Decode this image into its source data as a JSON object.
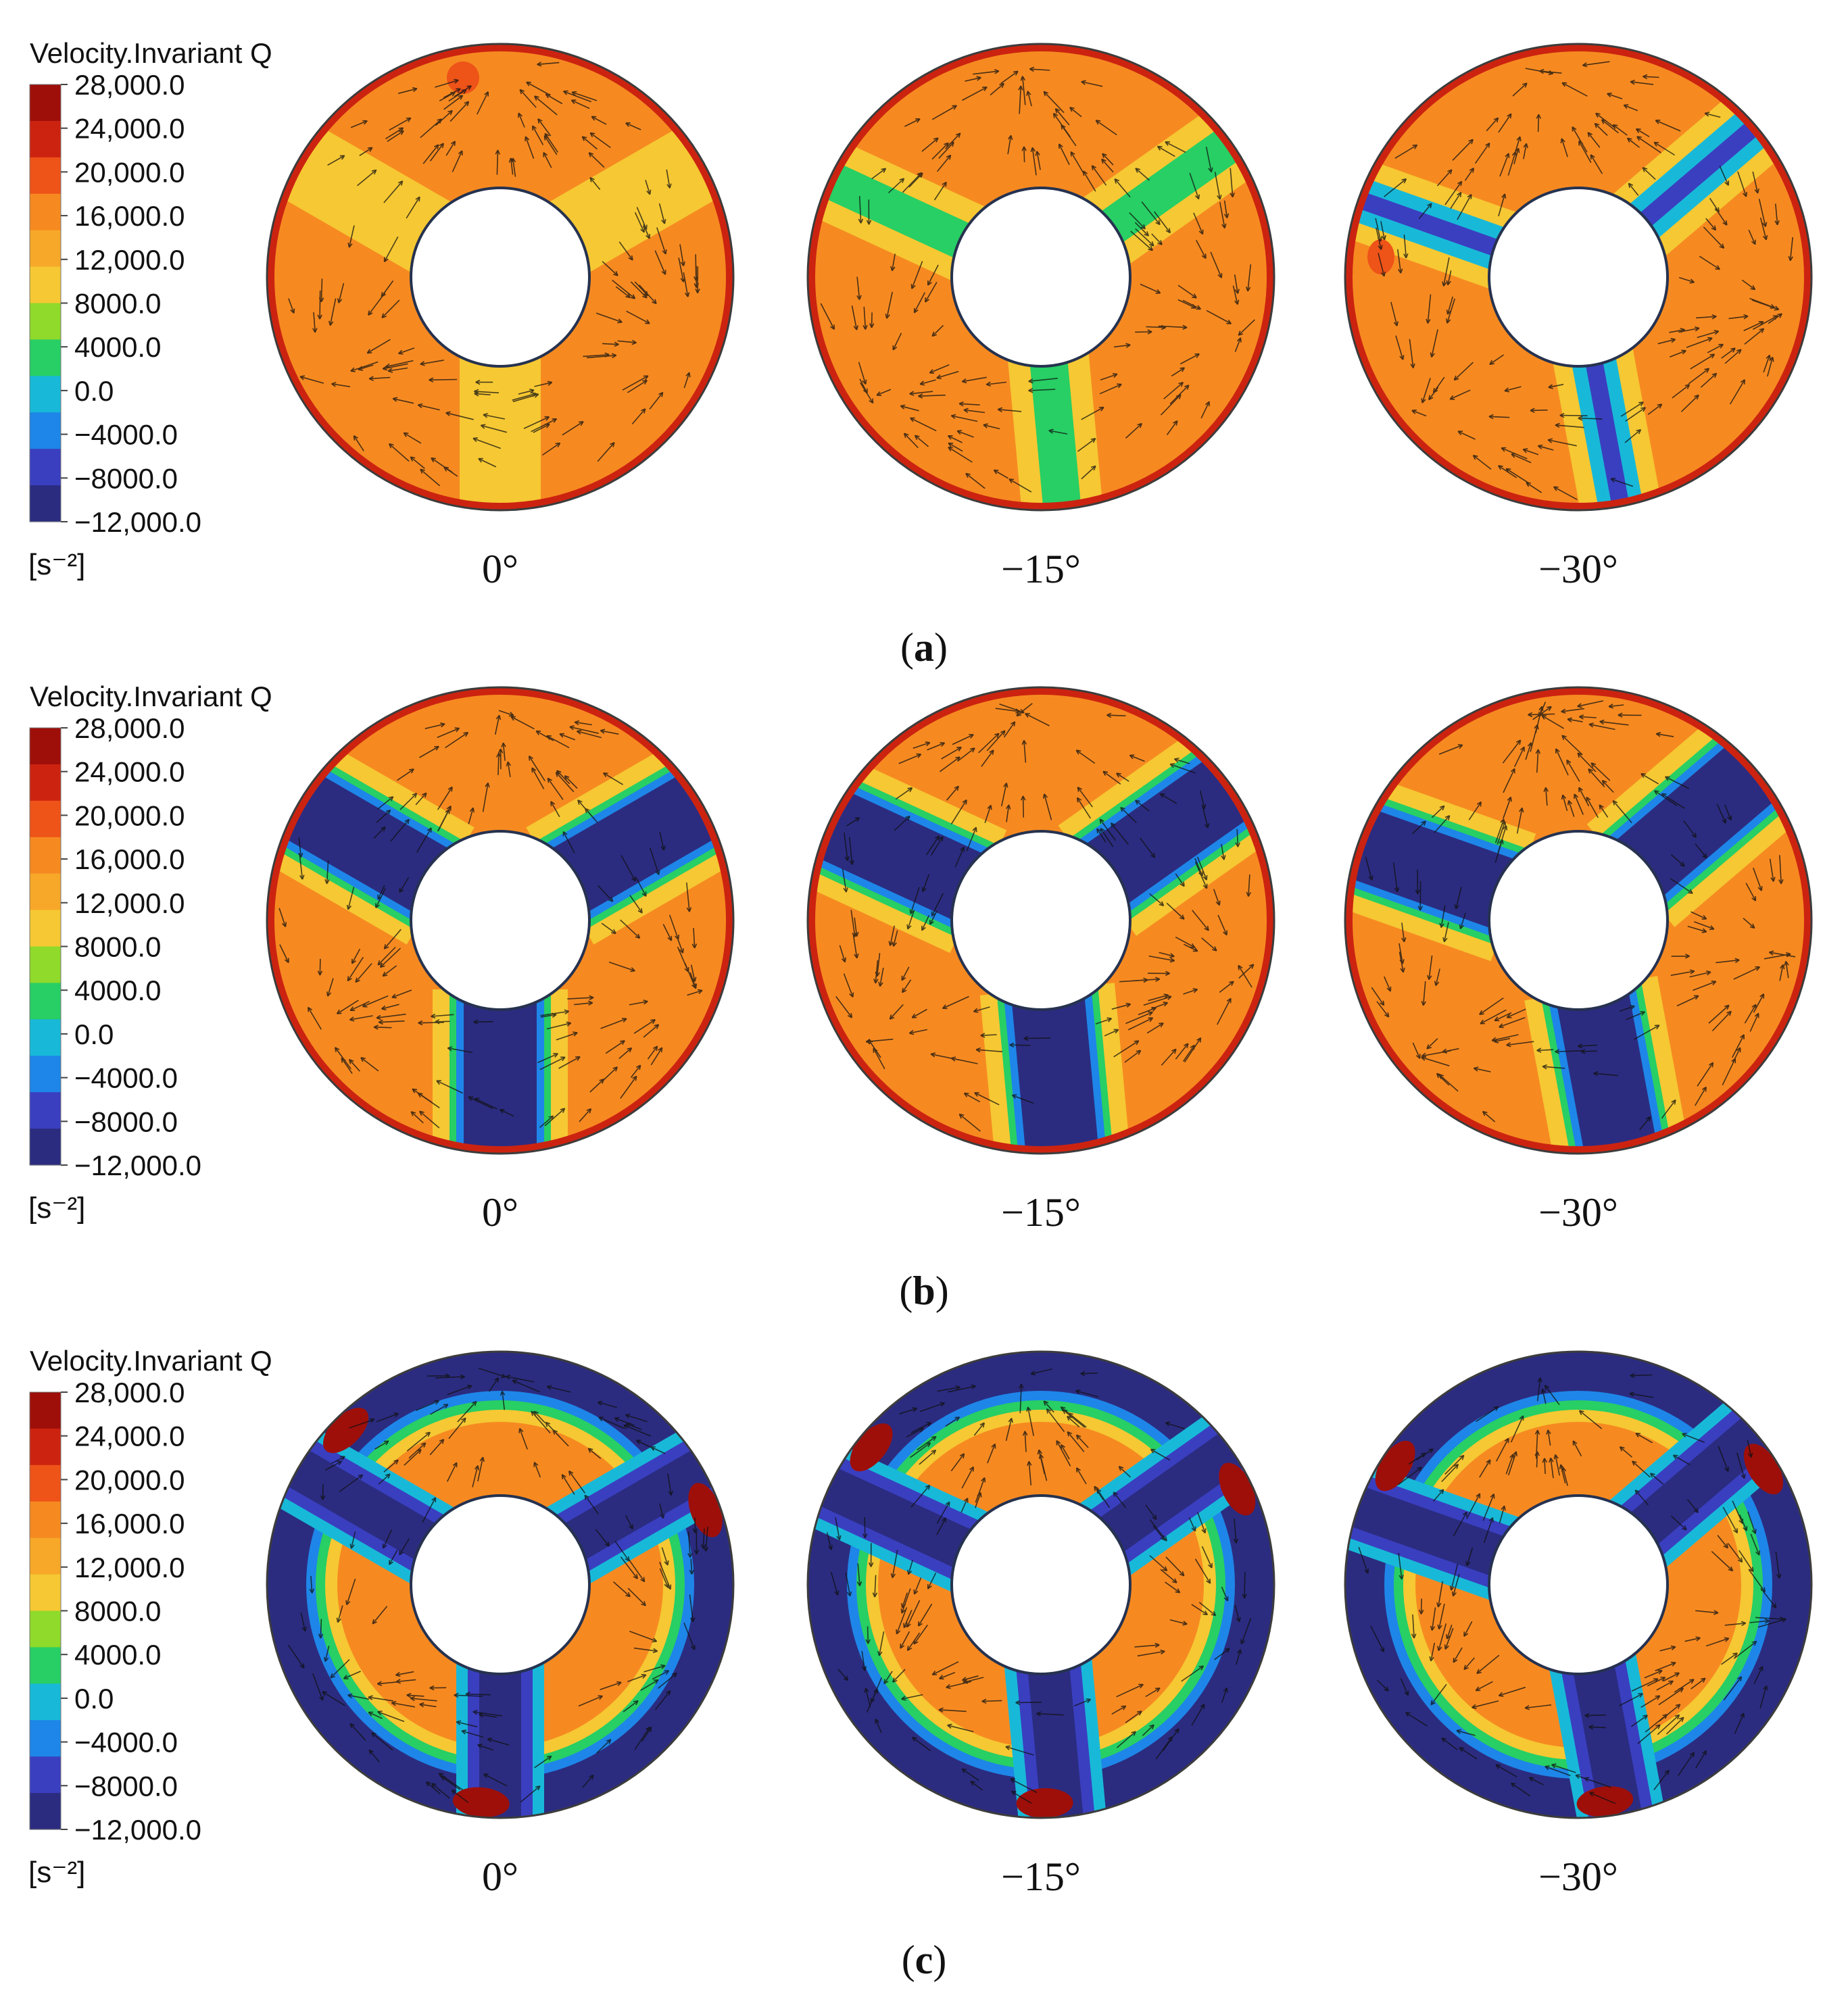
{
  "colormap": [
    "#2b2c80",
    "#3a3fc0",
    "#1e86e8",
    "#18b9d8",
    "#27cf64",
    "#8fda2a",
    "#f6c833",
    "#f7a829",
    "#f68a21",
    "#ee5318",
    "#cc2310",
    "#9e0f0a"
  ],
  "panels": [
    {
      "id": "a",
      "legend": {
        "title": "Velocity.Invariant Q",
        "ticks": [
          "28,000.0",
          "24,000.0",
          "20,000.0",
          "16,000.0",
          "12,000.0",
          "8000.0",
          "4000.0",
          "0.0",
          "−4000.0",
          "−8000.0",
          "−12,000.0"
        ],
        "unit": "[s⁻²]"
      },
      "angles": [
        "0°",
        "−15°",
        "−30°"
      ],
      "caption": {
        "open": "(",
        "letter": "a",
        "close": ")"
      }
    },
    {
      "id": "b",
      "legend": {
        "title": "Velocity.Invariant Q",
        "ticks": [
          "28,000.0",
          "24,000.0",
          "20,000.0",
          "16,000.0",
          "12,000.0",
          "8000.0",
          "4000.0",
          "0.0",
          "−4000.0",
          "−8000.0",
          "−12,000.0"
        ],
        "unit": "[s⁻²]"
      },
      "angles": [
        "0°",
        "−15°",
        "−30°"
      ],
      "caption": {
        "open": "(",
        "letter": "b",
        "close": ")"
      }
    },
    {
      "id": "c",
      "legend": {
        "title": "Velocity.Invariant Q",
        "ticks": [
          "28,000.0",
          "24,000.0",
          "20,000.0",
          "16,000.0",
          "12,000.0",
          "8000.0",
          "4000.0",
          "0.0",
          "−4000.0",
          "−8000.0",
          "−12,000.0"
        ],
        "unit": "[s⁻²]"
      },
      "angles": [
        "0°",
        "−15°",
        "−30°"
      ],
      "caption": {
        "open": "(",
        "letter": "c",
        "close": ")"
      }
    }
  ]
}
